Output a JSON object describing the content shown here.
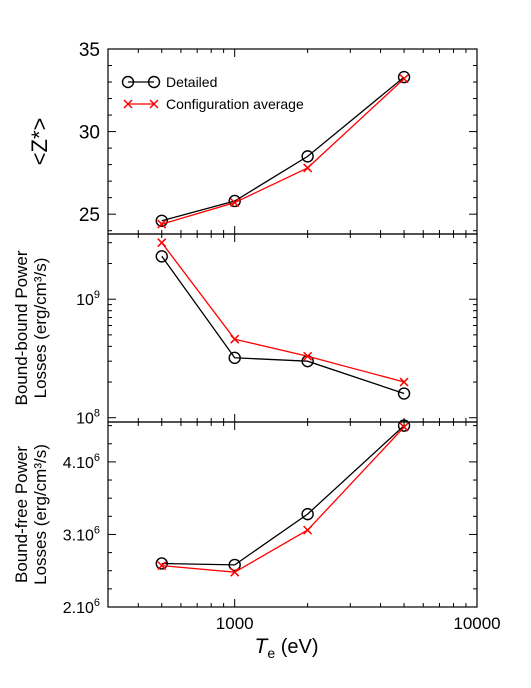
{
  "chart_data": [
    {
      "type": "line",
      "xscale": "log",
      "xlim": [
        300,
        10000
      ],
      "yscale": "linear",
      "ylim": [
        23.8,
        35
      ],
      "ylabel": "<Z*>",
      "yticks": [
        {
          "value": 25,
          "label": "25"
        },
        {
          "value": 30,
          "label": "30"
        },
        {
          "value": 35,
          "label": "35"
        }
      ],
      "legend": {
        "placement": "top-left"
      },
      "series": [
        {
          "name": "Detailed",
          "color": "#000000",
          "marker": "circle",
          "x": [
            500,
            1000,
            2000,
            5000
          ],
          "y": [
            24.6,
            25.8,
            28.5,
            33.3
          ]
        },
        {
          "name": "Configuration average",
          "color": "#ff0000",
          "marker": "x",
          "x": [
            500,
            1000,
            2000,
            5000
          ],
          "y": [
            24.4,
            25.7,
            27.8,
            33.2
          ]
        }
      ]
    },
    {
      "type": "line",
      "xscale": "log",
      "xlim": [
        300,
        10000
      ],
      "yscale": "log",
      "ylim": [
        92000000.0,
        3550000000.0
      ],
      "ylabel_lines": [
        "Bound-bound Power",
        "Losses (erg/cm³/s)"
      ],
      "yticks": [
        {
          "value": 100000000,
          "label_base": "10",
          "label_exp": "8"
        },
        {
          "value": 1000000000,
          "label_base": "10",
          "label_exp": "9"
        }
      ],
      "series": [
        {
          "name": "Detailed",
          "color": "#000000",
          "marker": "circle",
          "x": [
            500,
            1000,
            2000,
            5000
          ],
          "y": [
            2300000000.0,
            320000000.0,
            300000000.0,
            160000000.0
          ]
        },
        {
          "name": "Configuration average",
          "color": "#ff0000",
          "marker": "x",
          "x": [
            500,
            1000,
            2000,
            5000
          ],
          "y": [
            3000000000.0,
            460000000.0,
            330000000.0,
            200000000.0
          ]
        }
      ]
    },
    {
      "type": "line",
      "xscale": "log",
      "xlim": [
        300,
        10000
      ],
      "xlabel_main": "T",
      "xlabel_sub": "e",
      "xlabel_unit": " (eV)",
      "xticks": [
        {
          "value": 1000,
          "label": "1000"
        },
        {
          "value": 10000,
          "label": "10000"
        }
      ],
      "yscale": "linear",
      "ylim": [
        2000000,
        4550000
      ],
      "ylabel_lines": [
        "Bound-free Power",
        "Losses (erg/cm³/s)"
      ],
      "yticks": [
        {
          "value": 2000000,
          "label_base": "2.10",
          "label_exp": "6"
        },
        {
          "value": 3000000,
          "label_base": "3.10",
          "label_exp": "6"
        },
        {
          "value": 4000000,
          "label_base": "4.10",
          "label_exp": "6"
        }
      ],
      "series": [
        {
          "name": "Detailed",
          "color": "#000000",
          "marker": "circle",
          "x": [
            500,
            1000,
            2000,
            5000
          ],
          "y": [
            2600000,
            2580000,
            3280000,
            4500000
          ]
        },
        {
          "name": "Configuration average",
          "color": "#ff0000",
          "marker": "x",
          "x": [
            500,
            1000,
            2000,
            5000
          ],
          "y": [
            2570000,
            2480000,
            3060000,
            4480000
          ]
        }
      ]
    }
  ]
}
